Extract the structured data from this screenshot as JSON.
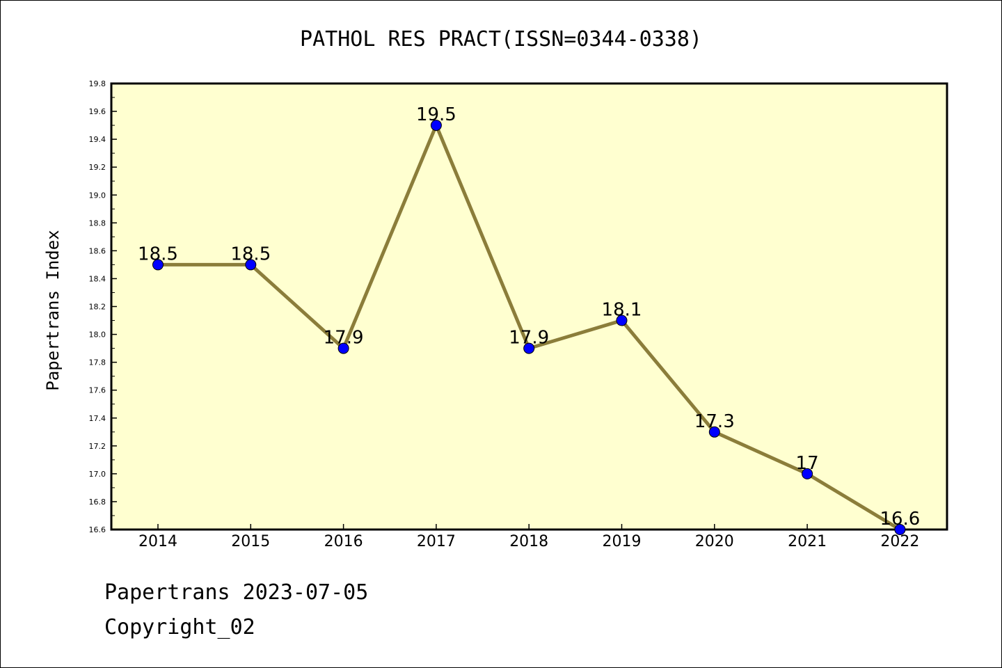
{
  "chart_data": {
    "type": "line",
    "title": "PATHOL RES PRACT(ISSN=0344-0338)",
    "xlabel": "",
    "ylabel": "Papertrans Index",
    "categories": [
      "2014",
      "2015",
      "2016",
      "2017",
      "2018",
      "2019",
      "2020",
      "2021",
      "2022"
    ],
    "series": [
      {
        "values": [
          18.5,
          18.5,
          17.9,
          19.5,
          17.9,
          18.1,
          17.3,
          17.0,
          16.6
        ],
        "labels": [
          "18.5",
          "18.5",
          "17.9",
          "19.5",
          "17.9",
          "18.1",
          "17.3",
          "17",
          "16.6"
        ]
      }
    ],
    "ylim": [
      16.6,
      19.8
    ],
    "yticks": [
      "16.6",
      "16.8",
      "17.0",
      "17.2",
      "17.4",
      "17.6",
      "17.8",
      "18.0",
      "18.2",
      "18.4",
      "18.6",
      "18.8",
      "19.0",
      "19.2",
      "19.4",
      "19.6",
      "19.8"
    ],
    "grid": false,
    "colors": {
      "plot_background": "#ffffd0",
      "line": "#8b7d3a",
      "marker": "#0000ff"
    }
  },
  "footer": {
    "line1": "Papertrans 2023-07-05",
    "line2": "Copyright_02"
  }
}
